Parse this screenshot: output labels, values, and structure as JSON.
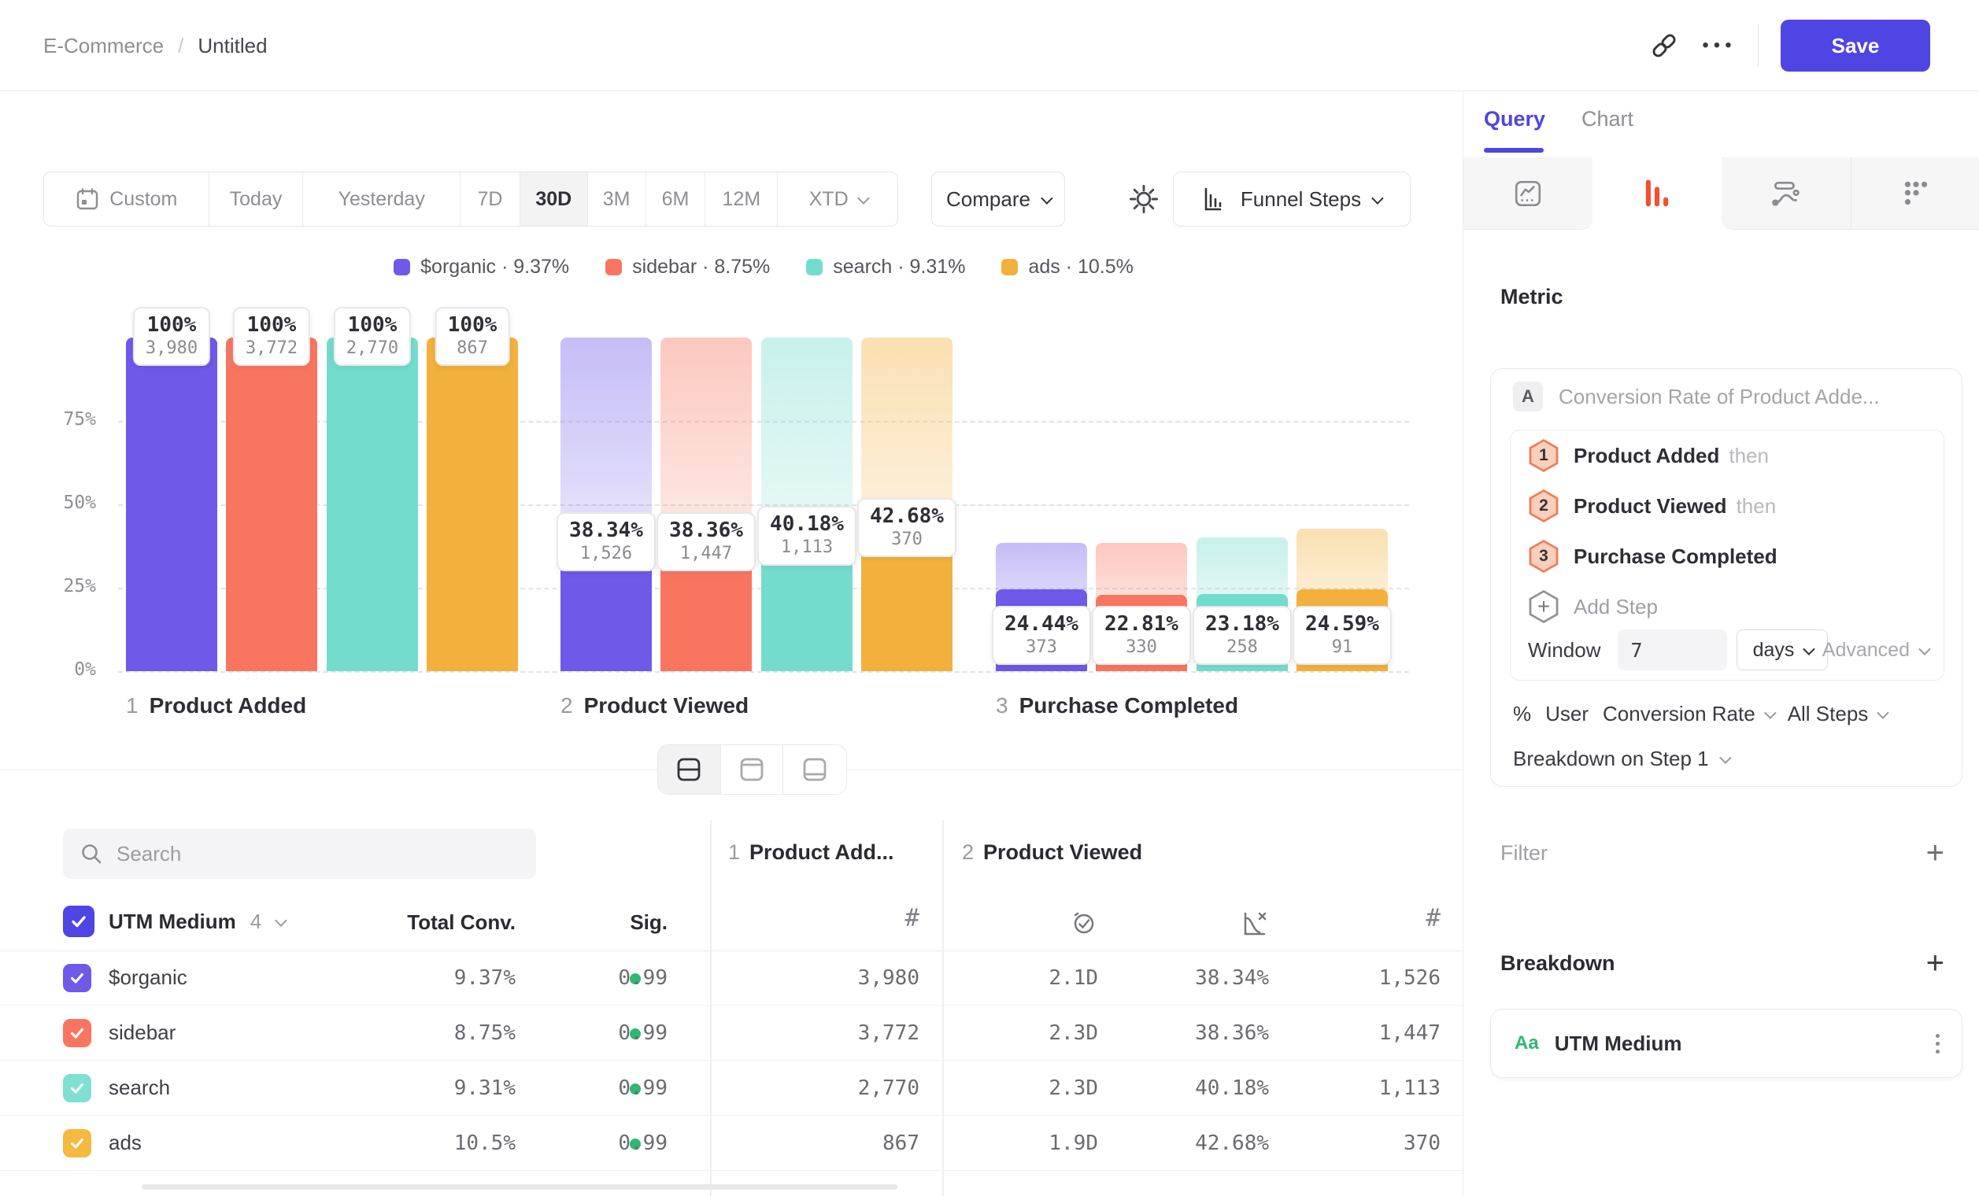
{
  "colors": {
    "accent": "#4F45E2",
    "coral": "#F8765F",
    "teal": "#74DCCC",
    "amber": "#F2B13C",
    "green": "#2EB873",
    "funnel_icon": "#F4502F"
  },
  "header": {
    "breadcrumb_section": "E-Commerce",
    "breadcrumb_sep": "/",
    "breadcrumb_page": "Untitled",
    "ellipsis": "•••",
    "save_label": "Save"
  },
  "toolbar": {
    "ranges": [
      {
        "label": "Custom",
        "icon": "calendar"
      },
      {
        "label": "Today"
      },
      {
        "label": "Yesterday"
      },
      {
        "label": "7D"
      },
      {
        "label": "30D",
        "active": true
      },
      {
        "label": "3M"
      },
      {
        "label": "6M"
      },
      {
        "label": "12M"
      },
      {
        "label": "XTD",
        "chevron": true
      }
    ],
    "compare_label": "Compare",
    "view_label": "Funnel Steps"
  },
  "legend": [
    {
      "label": "$organic",
      "value": "9.37%",
      "color": "#6E59E9"
    },
    {
      "label": "sidebar",
      "value": "8.75%",
      "color": "#F8765F"
    },
    {
      "label": "search",
      "value": "9.31%",
      "color": "#74DCCC"
    },
    {
      "label": "ads",
      "value": "10.5%",
      "color": "#F2B13C"
    }
  ],
  "chart_data": {
    "type": "bar",
    "title": "Funnel Steps conversion by UTM Medium",
    "ylim": [
      0,
      100
    ],
    "grid": "dashed",
    "y_ticks": [
      {
        "label": "75%",
        "pct": 75
      },
      {
        "label": "50%",
        "pct": 50
      },
      {
        "label": "25%",
        "pct": 25
      },
      {
        "label": "0%",
        "pct": 0
      }
    ],
    "series": [
      "$organic",
      "sidebar",
      "search",
      "ads"
    ],
    "series_colors": [
      "#6E59E9",
      "#F8765F",
      "#74DCCC",
      "#F2B13C"
    ],
    "steps": [
      {
        "num": "1",
        "name": "Product Added",
        "values": [
          {
            "pct": 100,
            "pct_label": "100%",
            "count": "3,980"
          },
          {
            "pct": 100,
            "pct_label": "100%",
            "count": "3,772"
          },
          {
            "pct": 100,
            "pct_label": "100%",
            "count": "2,770"
          },
          {
            "pct": 100,
            "pct_label": "100%",
            "count": "867"
          }
        ]
      },
      {
        "num": "2",
        "name": "Product Viewed",
        "values": [
          {
            "pct": 38.34,
            "pct_label": "38.34%",
            "count": "1,526"
          },
          {
            "pct": 38.36,
            "pct_label": "38.36%",
            "count": "1,447"
          },
          {
            "pct": 40.18,
            "pct_label": "40.18%",
            "count": "1,113"
          },
          {
            "pct": 42.68,
            "pct_label": "42.68%",
            "count": "370"
          }
        ]
      },
      {
        "num": "3",
        "name": "Purchase Completed",
        "values": [
          {
            "pct": 24.44,
            "pct_label": "24.44%",
            "count": "373"
          },
          {
            "pct": 22.81,
            "pct_label": "22.81%",
            "count": "330"
          },
          {
            "pct": 23.18,
            "pct_label": "23.18%",
            "count": "258"
          },
          {
            "pct": 24.59,
            "pct_label": "24.59%",
            "count": "91"
          }
        ]
      }
    ]
  },
  "table": {
    "search_placeholder": "Search",
    "group_name": "UTM Medium",
    "group_count": "4",
    "col_total": "Total Conv.",
    "col_sig": "Sig.",
    "step_cols": [
      {
        "num": "1",
        "name": "Product Add..."
      },
      {
        "num": "2",
        "name": "Product Viewed"
      }
    ],
    "rows": [
      {
        "label": "$organic",
        "color": "#6E59E9",
        "total": "9.37%",
        "sig": "0.99",
        "step1_count": "3,980",
        "avg_time": "2.1D",
        "conv_rate": "38.34%",
        "step2_count": "1,526"
      },
      {
        "label": "sidebar",
        "color": "#F8765F",
        "total": "8.75%",
        "sig": "0.99",
        "step1_count": "3,772",
        "avg_time": "2.3D",
        "conv_rate": "38.36%",
        "step2_count": "1,447"
      },
      {
        "label": "search",
        "color": "#7FE0D2",
        "total": "9.31%",
        "sig": "0.99",
        "step1_count": "2,770",
        "avg_time": "2.3D",
        "conv_rate": "40.18%",
        "step2_count": "1,113"
      },
      {
        "label": "ads",
        "color": "#F5B840",
        "total": "10.5%",
        "sig": "0.99",
        "step1_count": "867",
        "avg_time": "1.9D",
        "conv_rate": "42.68%",
        "step2_count": "370"
      }
    ]
  },
  "panel": {
    "tab_query": "Query",
    "tab_chart": "Chart",
    "metric_heading": "Metric",
    "metric_badge": "A",
    "metric_title": "Conversion Rate of Product Adde...",
    "steps": [
      {
        "num": "1",
        "name": "Product Added",
        "suffix": "then"
      },
      {
        "num": "2",
        "name": "Product Viewed",
        "suffix": "then"
      },
      {
        "num": "3",
        "name": "Purchase Completed",
        "suffix": ""
      }
    ],
    "add_step_label": "Add Step",
    "window_label": "Window",
    "window_value": "7",
    "window_unit": "days",
    "advanced_label": "Advanced",
    "measure_pct": "%",
    "measure_user": "User",
    "measure_conv": "Conversion Rate",
    "measure_all_steps": "All Steps",
    "breakdown_on_label": "Breakdown on Step 1",
    "filter_label": "Filter",
    "breakdown_label": "Breakdown",
    "breakdown_badge": "Aa",
    "breakdown_item": "UTM Medium"
  }
}
